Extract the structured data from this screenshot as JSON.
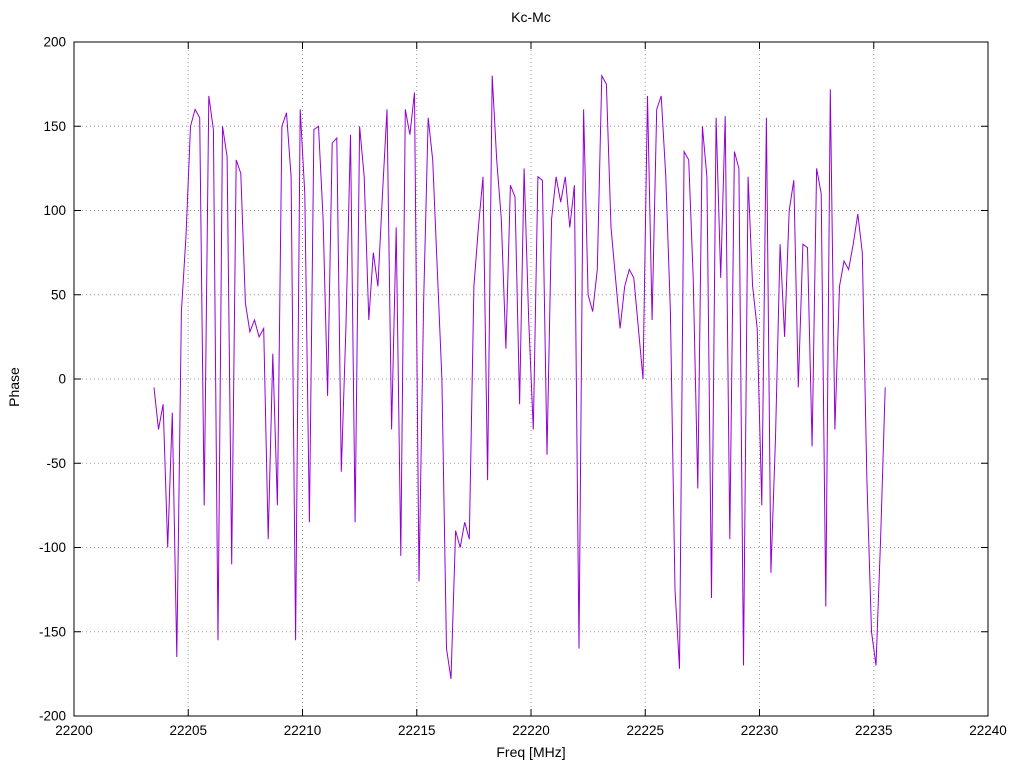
{
  "chart_data": {
    "type": "line",
    "title": "Kc-Mc",
    "xlabel": "Freq [MHz]",
    "ylabel": "Phase",
    "xlim": [
      22200,
      22240
    ],
    "ylim": [
      -200,
      200
    ],
    "xticks": [
      22200,
      22205,
      22210,
      22215,
      22220,
      22225,
      22230,
      22235,
      22240
    ],
    "yticks": [
      -200,
      -150,
      -100,
      -50,
      0,
      50,
      100,
      150,
      200
    ],
    "grid": true,
    "grid_style": "dotted",
    "grid_color": "#9e9e9e",
    "border_color": "#000000",
    "background": "#ffffff",
    "legend": "none",
    "line_color": "#9400d3",
    "series": [
      {
        "name": "Kc-Mc",
        "x_start": 22203.5,
        "x_step": 0.2,
        "values": [
          -5,
          -30,
          -15,
          -100,
          -20,
          -165,
          40,
          85,
          150,
          160,
          155,
          -75,
          168,
          148,
          -155,
          150,
          132,
          -110,
          130,
          122,
          45,
          28,
          35,
          25,
          30,
          -95,
          15,
          -75,
          150,
          158,
          120,
          -155,
          160,
          110,
          -85,
          148,
          150,
          95,
          -10,
          140,
          143,
          -55,
          30,
          145,
          -85,
          150,
          120,
          35,
          75,
          55,
          110,
          160,
          -30,
          90,
          -105,
          160,
          145,
          170,
          -120,
          45,
          155,
          130,
          65,
          0,
          -160,
          -178,
          -90,
          -100,
          -85,
          -95,
          55,
          90,
          120,
          -60,
          180,
          130,
          95,
          18,
          115,
          108,
          -15,
          125,
          35,
          -30,
          120,
          118,
          -45,
          95,
          120,
          105,
          120,
          90,
          115,
          -160,
          160,
          50,
          40,
          65,
          180,
          175,
          90,
          60,
          30,
          55,
          65,
          60,
          30,
          0,
          168,
          35,
          160,
          168,
          120,
          40,
          -125,
          -172,
          135,
          130,
          60,
          -65,
          150,
          120,
          -130,
          155,
          60,
          156,
          -95,
          135,
          125,
          -170,
          120,
          55,
          30,
          -75,
          155,
          -115,
          -35,
          80,
          25,
          100,
          118,
          -5,
          80,
          78,
          -40,
          125,
          110,
          -135,
          172,
          -30,
          55,
          70,
          65,
          80,
          98,
          75,
          -60,
          -150,
          -170,
          -95,
          -5
        ]
      }
    ]
  }
}
